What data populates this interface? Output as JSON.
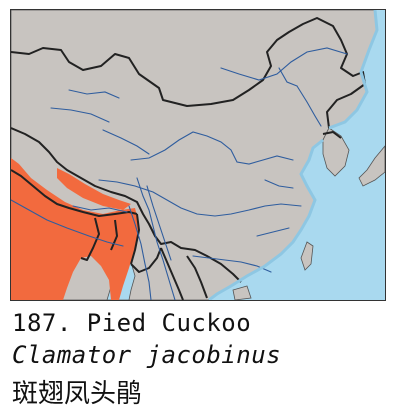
{
  "caption": {
    "number_common_name": "187. Pied Cuckoo",
    "scientific_name": "Clamator jacobinus",
    "chinese_name": "斑翅凤头鹃"
  },
  "colors": {
    "sea": "#a9d9ef",
    "land": "#c8c4c0",
    "border": "#222222",
    "river": "#2f5d9e",
    "range": "#f26a3e"
  }
}
